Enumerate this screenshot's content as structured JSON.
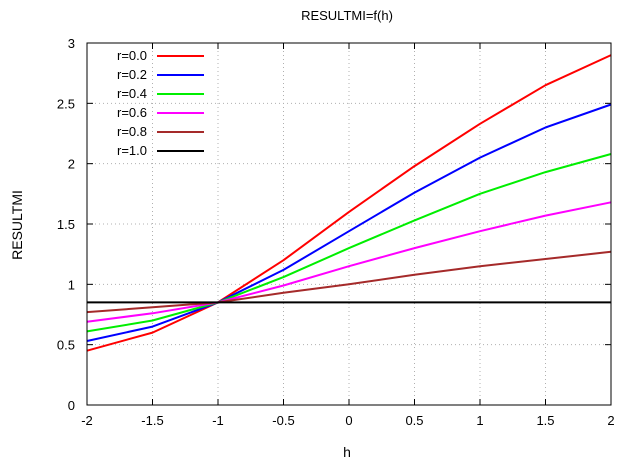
{
  "chart_data": {
    "type": "line",
    "title": "RESULTMI=f(h)",
    "xlabel": "h",
    "ylabel": "RESULTMI",
    "xlim": [
      -2,
      2
    ],
    "ylim": [
      0,
      3
    ],
    "xticks": [
      -2,
      -1.5,
      -1,
      -0.5,
      0,
      0.5,
      1,
      1.5,
      2
    ],
    "xtick_labels": [
      "-2",
      "-1.5",
      "-1",
      "-0.5",
      "0",
      "0.5",
      "1",
      "1.5",
      "2"
    ],
    "yticks": [
      0,
      0.5,
      1,
      1.5,
      2,
      2.5,
      3
    ],
    "ytick_labels": [
      "0",
      "0.5",
      "1",
      "1.5",
      "2",
      "2.5",
      "3"
    ],
    "grid": true,
    "legend_position": "top-left",
    "x": [
      -2,
      -1.5,
      -1,
      -0.5,
      0,
      0.5,
      1,
      1.5,
      2
    ],
    "series": [
      {
        "name": "r=0.0",
        "color": "#ff0000",
        "values": [
          0.45,
          0.6,
          0.85,
          1.2,
          1.6,
          1.98,
          2.33,
          2.65,
          2.9
        ]
      },
      {
        "name": "r=0.2",
        "color": "#0000ff",
        "values": [
          0.53,
          0.65,
          0.85,
          1.12,
          1.44,
          1.76,
          2.05,
          2.3,
          2.49
        ]
      },
      {
        "name": "r=0.4",
        "color": "#00ee00",
        "values": [
          0.61,
          0.7,
          0.85,
          1.06,
          1.3,
          1.53,
          1.75,
          1.93,
          2.08
        ]
      },
      {
        "name": "r=0.6",
        "color": "#ff00ff",
        "values": [
          0.69,
          0.76,
          0.85,
          0.99,
          1.15,
          1.3,
          1.44,
          1.57,
          1.68
        ]
      },
      {
        "name": "r=0.8",
        "color": "#a52a2a",
        "values": [
          0.77,
          0.81,
          0.85,
          0.93,
          1.0,
          1.08,
          1.15,
          1.21,
          1.27
        ]
      },
      {
        "name": "r=1.0",
        "color": "#000000",
        "values": [
          0.85,
          0.85,
          0.85,
          0.85,
          0.85,
          0.85,
          0.85,
          0.85,
          0.85
        ]
      }
    ]
  }
}
